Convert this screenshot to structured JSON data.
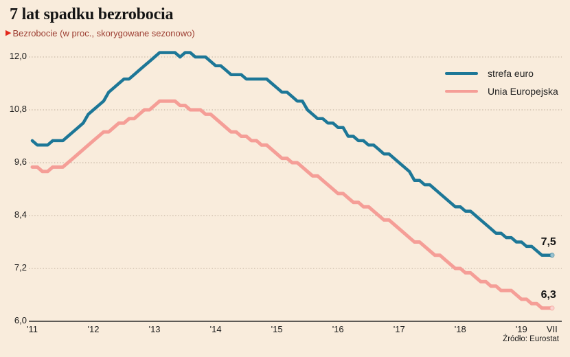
{
  "page": {
    "background": "#f9ecdc"
  },
  "header": {
    "title": "7 lat spadku bezrobocia",
    "subtitle_marker": "▶",
    "subtitle": "Bezrobocie (w proc., skorygowane sezonowo)"
  },
  "source": "Źródło: Eurostat",
  "colors": {
    "background": "#f9ecdc",
    "euro_line": "#1d7797",
    "eu_line": "#f59e97",
    "gridline": "#bfae9b",
    "axis_line": "#2b2b2b",
    "subtitle_text": "#9c3d31",
    "subtitle_arrow": "#e3261a"
  },
  "chart_data": {
    "type": "line",
    "title": "7 lat spadku bezrobocia",
    "subtitle": "Bezrobocie (w proc., skorygowane sezonowo)",
    "x_start": "2011-01",
    "x_end": "2019-07",
    "x_unit": "month",
    "x_tick_labels": [
      "'11",
      "'12",
      "'13",
      "'14",
      "'15",
      "'16",
      "'17",
      "'18",
      "'19",
      "VII"
    ],
    "y_ticks": [
      6.0,
      7.2,
      8.4,
      9.6,
      10.8,
      12.0
    ],
    "y_tick_labels": [
      "6,0",
      "7,2",
      "8,4",
      "9,6",
      "10,8",
      "12,0"
    ],
    "ylim": [
      6.0,
      12.4
    ],
    "grid": "horizontal-dotted",
    "legend_position": "top-right",
    "series": [
      {
        "name": "strefa euro",
        "color": "#1d7797",
        "end_label": "7,5",
        "values": [
          10.1,
          10.0,
          10.0,
          10.0,
          10.1,
          10.1,
          10.1,
          10.2,
          10.3,
          10.4,
          10.5,
          10.7,
          10.8,
          10.9,
          11.0,
          11.2,
          11.3,
          11.4,
          11.5,
          11.5,
          11.6,
          11.7,
          11.8,
          11.9,
          12.0,
          12.1,
          12.1,
          12.1,
          12.1,
          12.0,
          12.1,
          12.1,
          12.0,
          12.0,
          12.0,
          11.9,
          11.8,
          11.8,
          11.7,
          11.6,
          11.6,
          11.6,
          11.5,
          11.5,
          11.5,
          11.5,
          11.5,
          11.4,
          11.3,
          11.2,
          11.2,
          11.1,
          11.0,
          11.0,
          10.8,
          10.7,
          10.6,
          10.6,
          10.5,
          10.5,
          10.4,
          10.4,
          10.2,
          10.2,
          10.1,
          10.1,
          10.0,
          10.0,
          9.9,
          9.8,
          9.8,
          9.7,
          9.6,
          9.5,
          9.4,
          9.2,
          9.2,
          9.1,
          9.1,
          9.0,
          8.9,
          8.8,
          8.7,
          8.6,
          8.6,
          8.5,
          8.5,
          8.4,
          8.3,
          8.2,
          8.1,
          8.0,
          8.0,
          7.9,
          7.9,
          7.8,
          7.8,
          7.7,
          7.7,
          7.6,
          7.5,
          7.5,
          7.5
        ]
      },
      {
        "name": "Unia Europejska",
        "color": "#f59e97",
        "end_label": "6,3",
        "values": [
          9.5,
          9.5,
          9.4,
          9.4,
          9.5,
          9.5,
          9.5,
          9.6,
          9.7,
          9.8,
          9.9,
          10.0,
          10.1,
          10.2,
          10.3,
          10.3,
          10.4,
          10.5,
          10.5,
          10.6,
          10.6,
          10.7,
          10.8,
          10.8,
          10.9,
          11.0,
          11.0,
          11.0,
          11.0,
          10.9,
          10.9,
          10.8,
          10.8,
          10.8,
          10.7,
          10.7,
          10.6,
          10.5,
          10.4,
          10.3,
          10.3,
          10.2,
          10.2,
          10.1,
          10.1,
          10.0,
          10.0,
          9.9,
          9.8,
          9.7,
          9.7,
          9.6,
          9.6,
          9.5,
          9.4,
          9.3,
          9.3,
          9.2,
          9.1,
          9.0,
          8.9,
          8.9,
          8.8,
          8.7,
          8.7,
          8.6,
          8.6,
          8.5,
          8.4,
          8.3,
          8.3,
          8.2,
          8.1,
          8.0,
          7.9,
          7.8,
          7.8,
          7.7,
          7.6,
          7.5,
          7.5,
          7.4,
          7.3,
          7.2,
          7.2,
          7.1,
          7.1,
          7.0,
          6.9,
          6.9,
          6.8,
          6.8,
          6.7,
          6.7,
          6.7,
          6.6,
          6.5,
          6.5,
          6.4,
          6.4,
          6.3,
          6.3,
          6.3
        ]
      }
    ]
  }
}
